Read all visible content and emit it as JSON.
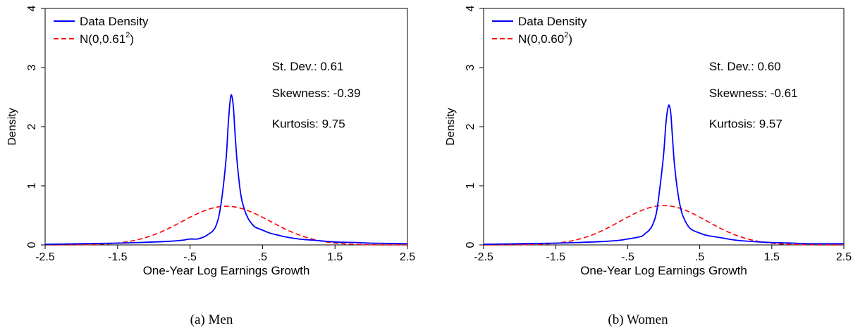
{
  "chart_data": [
    {
      "type": "line",
      "caption": "(a) Men",
      "xlabel": "One-Year Log Earnings Growth",
      "ylabel": "Density",
      "xlim": [
        -2.5,
        2.5
      ],
      "ylim": [
        0,
        4
      ],
      "x_ticks": [
        -2.5,
        -1.5,
        -0.5,
        0.5,
        1.5,
        2.5
      ],
      "x_tick_labels": [
        "-2.5",
        "-1.5",
        "-.5",
        ".5",
        "1.5",
        "2.5"
      ],
      "y_ticks": [
        0,
        1,
        2,
        3,
        4
      ],
      "y_tick_labels": [
        "0",
        "1",
        "2",
        "3",
        "4"
      ],
      "grid": false,
      "legend_position": "top-left",
      "series": [
        {
          "name": "Data Density",
          "style": "solid",
          "color": "#0000ff",
          "x": [
            -2.5,
            -2.0,
            -1.5,
            -1.2,
            -1.0,
            -0.8,
            -0.6,
            -0.5,
            -0.4,
            -0.3,
            -0.25,
            -0.2,
            -0.15,
            -0.1,
            -0.05,
            0.0,
            0.03,
            0.06,
            0.08,
            0.1,
            0.12,
            0.15,
            0.2,
            0.25,
            0.3,
            0.35,
            0.4,
            0.5,
            0.6,
            0.7,
            0.8,
            1.0,
            1.2,
            1.5,
            1.8,
            2.0,
            2.5
          ],
          "y": [
            0.01,
            0.02,
            0.03,
            0.04,
            0.05,
            0.06,
            0.08,
            0.1,
            0.1,
            0.14,
            0.18,
            0.22,
            0.3,
            0.5,
            0.9,
            1.5,
            2.1,
            2.5,
            2.5,
            2.3,
            1.9,
            1.4,
            0.85,
            0.6,
            0.45,
            0.36,
            0.3,
            0.25,
            0.2,
            0.17,
            0.14,
            0.1,
            0.08,
            0.05,
            0.04,
            0.03,
            0.02
          ]
        },
        {
          "name": "N(0,0.61²)",
          "name_prefix": "N(0,0.61",
          "name_sup": "2",
          "name_suffix": ")",
          "style": "dashed",
          "color": "#ff0000",
          "distribution": "normal",
          "mean": 0,
          "sd": 0.61
        }
      ],
      "annotations": [
        {
          "text": "St. Dev.: 0.61",
          "x": 0.63,
          "y": 2.95
        },
        {
          "text": "Skewness: -0.39",
          "x": 0.63,
          "y": 2.5
        },
        {
          "text": "Kurtosis: 9.75",
          "x": 0.63,
          "y": 1.98
        }
      ]
    },
    {
      "type": "line",
      "caption": "(b) Women",
      "xlabel": "One-Year Log Earnings Growth",
      "ylabel": "Density",
      "xlim": [
        -2.5,
        2.5
      ],
      "ylim": [
        0,
        4
      ],
      "x_ticks": [
        -2.5,
        -1.5,
        -0.5,
        0.5,
        1.5,
        2.5
      ],
      "x_tick_labels": [
        "-2.5",
        "-1.5",
        "-.5",
        ".5",
        "1.5",
        "2.5"
      ],
      "y_ticks": [
        0,
        1,
        2,
        3,
        4
      ],
      "y_tick_labels": [
        "0",
        "1",
        "2",
        "3",
        "4"
      ],
      "grid": false,
      "legend_position": "top-left",
      "series": [
        {
          "name": "Data Density",
          "style": "solid",
          "color": "#0000ff",
          "x": [
            -2.5,
            -2.0,
            -1.5,
            -1.2,
            -1.0,
            -0.8,
            -0.6,
            -0.5,
            -0.4,
            -0.3,
            -0.25,
            -0.2,
            -0.15,
            -0.1,
            -0.05,
            0.0,
            0.03,
            0.06,
            0.08,
            0.1,
            0.12,
            0.15,
            0.2,
            0.25,
            0.3,
            0.35,
            0.4,
            0.5,
            0.6,
            0.7,
            0.8,
            1.0,
            1.2,
            1.5,
            1.8,
            2.0,
            2.5
          ],
          "y": [
            0.01,
            0.02,
            0.03,
            0.04,
            0.05,
            0.06,
            0.08,
            0.1,
            0.12,
            0.15,
            0.2,
            0.25,
            0.35,
            0.55,
            1.0,
            1.55,
            2.05,
            2.33,
            2.35,
            2.2,
            1.85,
            1.35,
            0.85,
            0.55,
            0.4,
            0.3,
            0.25,
            0.2,
            0.16,
            0.14,
            0.12,
            0.08,
            0.06,
            0.04,
            0.03,
            0.02,
            0.02
          ]
        },
        {
          "name": "N(0,0.60²)",
          "name_prefix": "N(0,0.60",
          "name_sup": "2",
          "name_suffix": ")",
          "style": "dashed",
          "color": "#ff0000",
          "distribution": "normal",
          "mean": 0,
          "sd": 0.6
        }
      ],
      "annotations": [
        {
          "text": "St. Dev.: 0.60",
          "x": 0.63,
          "y": 2.95
        },
        {
          "text": "Skewness: -0.61",
          "x": 0.63,
          "y": 2.5
        },
        {
          "text": "Kurtosis: 9.57",
          "x": 0.63,
          "y": 1.98
        }
      ]
    }
  ]
}
